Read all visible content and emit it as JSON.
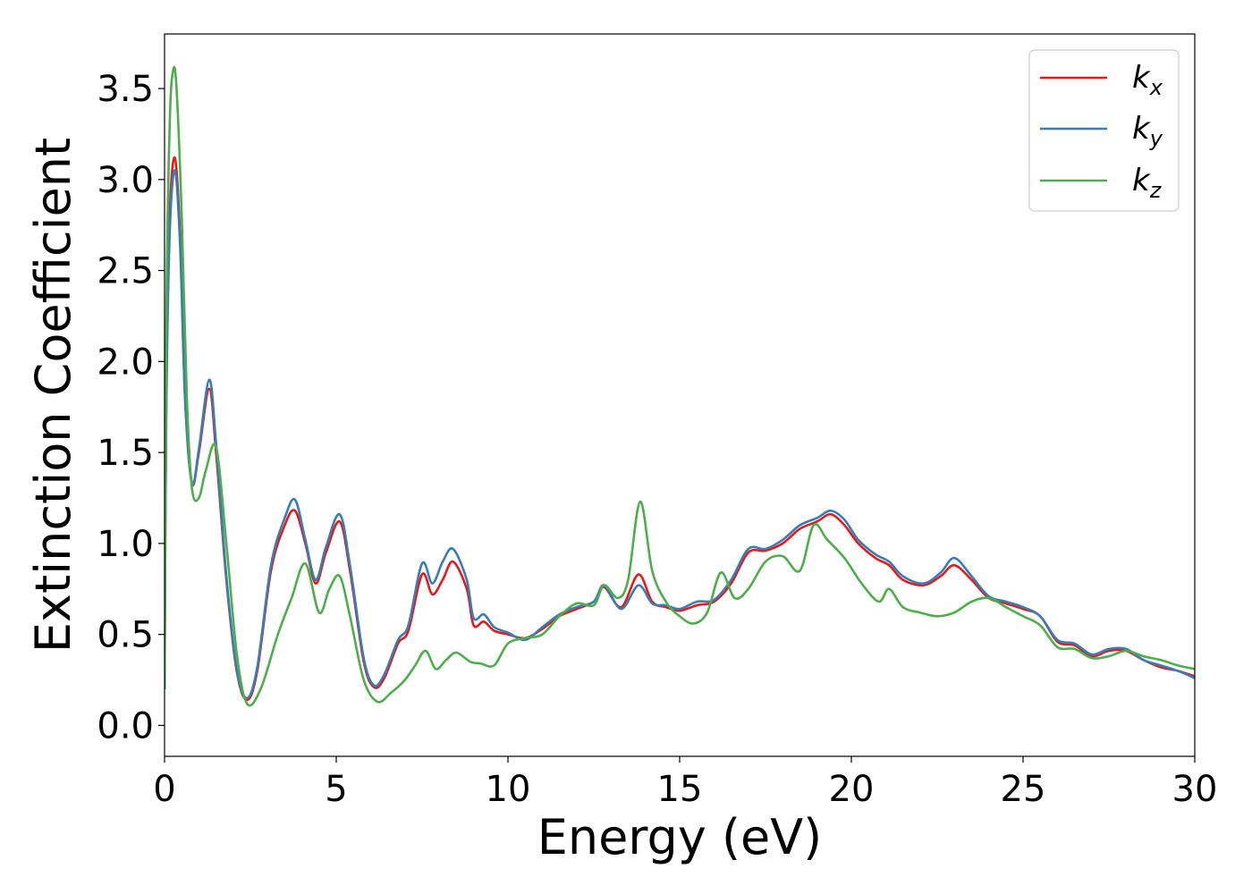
{
  "chart_data": {
    "type": "line",
    "xlabel": "Energy (eV)",
    "ylabel": "Extinction Coefficient",
    "xlim": [
      0,
      30
    ],
    "ylim": [
      -0.17,
      3.8
    ],
    "xticks": [
      0,
      5,
      10,
      15,
      20,
      25,
      30
    ],
    "xtick_labels": [
      "0",
      "5",
      "10",
      "15",
      "20",
      "25",
      "30"
    ],
    "yticks": [
      0.0,
      0.5,
      1.0,
      1.5,
      2.0,
      2.5,
      3.0,
      3.5
    ],
    "ytick_labels": [
      "0.0",
      "0.5",
      "1.0",
      "1.5",
      "2.0",
      "2.5",
      "3.0",
      "3.5"
    ],
    "grid": false,
    "legend_position": "top-right",
    "series": [
      {
        "name": "k_x",
        "label_base": "k",
        "label_sub": "x",
        "color": "#e41a1c",
        "x": [
          0,
          0.05,
          0.15,
          0.3,
          0.45,
          0.6,
          0.8,
          1.0,
          1.3,
          1.5,
          1.8,
          2.1,
          2.4,
          2.7,
          3.1,
          3.5,
          3.8,
          4.1,
          4.4,
          4.7,
          5.1,
          5.4,
          5.8,
          6.1,
          6.4,
          6.8,
          7.1,
          7.5,
          7.8,
          8.1,
          8.4,
          8.8,
          9.0,
          9.3,
          9.6,
          10.0,
          10.5,
          11.0,
          11.5,
          12.0,
          12.5,
          12.8,
          13.3,
          13.8,
          14.2,
          14.6,
          15.0,
          15.5,
          16.0,
          16.5,
          17.0,
          17.5,
          18.0,
          18.5,
          19.0,
          19.4,
          19.8,
          20.2,
          20.7,
          21.1,
          21.5,
          22.1,
          22.6,
          23.0,
          23.5,
          24.0,
          24.5,
          25.0,
          25.5,
          26.0,
          26.5,
          27.0,
          27.5,
          28.0,
          28.5,
          29.0,
          29.5,
          30.0
        ],
        "y": [
          0.2,
          1.8,
          2.8,
          3.12,
          2.7,
          1.8,
          1.33,
          1.5,
          1.85,
          1.5,
          0.8,
          0.3,
          0.14,
          0.3,
          0.85,
          1.1,
          1.18,
          1.0,
          0.78,
          0.95,
          1.12,
          0.85,
          0.35,
          0.21,
          0.26,
          0.45,
          0.52,
          0.83,
          0.72,
          0.8,
          0.9,
          0.75,
          0.55,
          0.57,
          0.52,
          0.5,
          0.48,
          0.53,
          0.6,
          0.64,
          0.68,
          0.76,
          0.65,
          0.83,
          0.68,
          0.65,
          0.63,
          0.66,
          0.68,
          0.78,
          0.95,
          0.96,
          1.0,
          1.08,
          1.12,
          1.16,
          1.1,
          1.0,
          0.92,
          0.88,
          0.8,
          0.77,
          0.82,
          0.88,
          0.8,
          0.7,
          0.67,
          0.64,
          0.6,
          0.46,
          0.44,
          0.38,
          0.41,
          0.41,
          0.36,
          0.32,
          0.3,
          0.27
        ]
      },
      {
        "name": "k_y",
        "label_base": "k",
        "label_sub": "y",
        "color": "#377eb8",
        "x": [
          0,
          0.05,
          0.15,
          0.3,
          0.45,
          0.6,
          0.8,
          1.0,
          1.3,
          1.5,
          1.8,
          2.1,
          2.4,
          2.7,
          3.1,
          3.5,
          3.8,
          4.1,
          4.4,
          4.7,
          5.1,
          5.4,
          5.8,
          6.1,
          6.4,
          6.8,
          7.1,
          7.5,
          7.8,
          8.1,
          8.4,
          8.8,
          9.0,
          9.3,
          9.6,
          10.0,
          10.5,
          11.0,
          11.5,
          12.0,
          12.5,
          12.8,
          13.3,
          13.8,
          14.2,
          14.6,
          15.0,
          15.5,
          16.0,
          16.5,
          17.0,
          17.5,
          18.0,
          18.5,
          19.0,
          19.4,
          19.8,
          20.2,
          20.7,
          21.1,
          21.5,
          22.1,
          22.6,
          23.0,
          23.5,
          24.0,
          24.5,
          25.0,
          25.5,
          26.0,
          26.5,
          27.0,
          27.5,
          28.0,
          28.5,
          29.0,
          29.5,
          30.0
        ],
        "y": [
          0.2,
          1.7,
          2.7,
          3.05,
          2.65,
          1.78,
          1.33,
          1.52,
          1.9,
          1.55,
          0.82,
          0.31,
          0.15,
          0.32,
          0.88,
          1.14,
          1.24,
          1.02,
          0.8,
          0.98,
          1.16,
          0.88,
          0.37,
          0.22,
          0.28,
          0.47,
          0.55,
          0.89,
          0.78,
          0.9,
          0.97,
          0.8,
          0.59,
          0.61,
          0.54,
          0.51,
          0.47,
          0.54,
          0.61,
          0.65,
          0.68,
          0.77,
          0.64,
          0.77,
          0.67,
          0.66,
          0.64,
          0.68,
          0.69,
          0.8,
          0.97,
          0.97,
          1.02,
          1.1,
          1.14,
          1.18,
          1.13,
          1.02,
          0.94,
          0.9,
          0.82,
          0.78,
          0.84,
          0.92,
          0.82,
          0.71,
          0.68,
          0.65,
          0.6,
          0.47,
          0.45,
          0.39,
          0.42,
          0.42,
          0.36,
          0.33,
          0.3,
          0.26
        ]
      },
      {
        "name": "k_z",
        "label_base": "k",
        "label_sub": "z",
        "color": "#4daf4a",
        "x": [
          0,
          0.05,
          0.15,
          0.25,
          0.35,
          0.5,
          0.65,
          0.8,
          1.0,
          1.2,
          1.5,
          1.8,
          2.1,
          2.4,
          2.8,
          3.3,
          3.7,
          4.1,
          4.5,
          4.8,
          5.1,
          5.4,
          5.8,
          6.2,
          6.6,
          7.0,
          7.3,
          7.6,
          7.9,
          8.2,
          8.5,
          8.9,
          9.2,
          9.6,
          10.0,
          10.5,
          11.0,
          11.5,
          12.0,
          12.5,
          12.8,
          13.2,
          13.5,
          13.85,
          14.2,
          14.6,
          15.0,
          15.4,
          15.8,
          16.2,
          16.6,
          17.0,
          17.5,
          18.0,
          18.5,
          18.9,
          19.3,
          19.8,
          20.3,
          20.8,
          21.1,
          21.5,
          22.0,
          22.5,
          23.0,
          23.5,
          24.0,
          24.5,
          25.0,
          25.5,
          26.0,
          26.5,
          27.0,
          27.5,
          28.0,
          28.5,
          29.0,
          29.5,
          30.0
        ],
        "y": [
          0.2,
          2.2,
          3.3,
          3.6,
          3.5,
          2.8,
          1.8,
          1.3,
          1.25,
          1.4,
          1.53,
          1.0,
          0.4,
          0.12,
          0.2,
          0.5,
          0.7,
          0.89,
          0.62,
          0.75,
          0.82,
          0.6,
          0.25,
          0.13,
          0.18,
          0.25,
          0.33,
          0.41,
          0.31,
          0.36,
          0.4,
          0.35,
          0.34,
          0.33,
          0.45,
          0.48,
          0.5,
          0.6,
          0.67,
          0.66,
          0.77,
          0.7,
          0.8,
          1.23,
          0.85,
          0.68,
          0.6,
          0.56,
          0.62,
          0.84,
          0.7,
          0.75,
          0.9,
          0.93,
          0.85,
          1.1,
          1.02,
          0.92,
          0.78,
          0.68,
          0.75,
          0.65,
          0.62,
          0.6,
          0.62,
          0.68,
          0.7,
          0.65,
          0.6,
          0.55,
          0.43,
          0.42,
          0.37,
          0.38,
          0.41,
          0.38,
          0.36,
          0.33,
          0.31
        ]
      }
    ]
  }
}
